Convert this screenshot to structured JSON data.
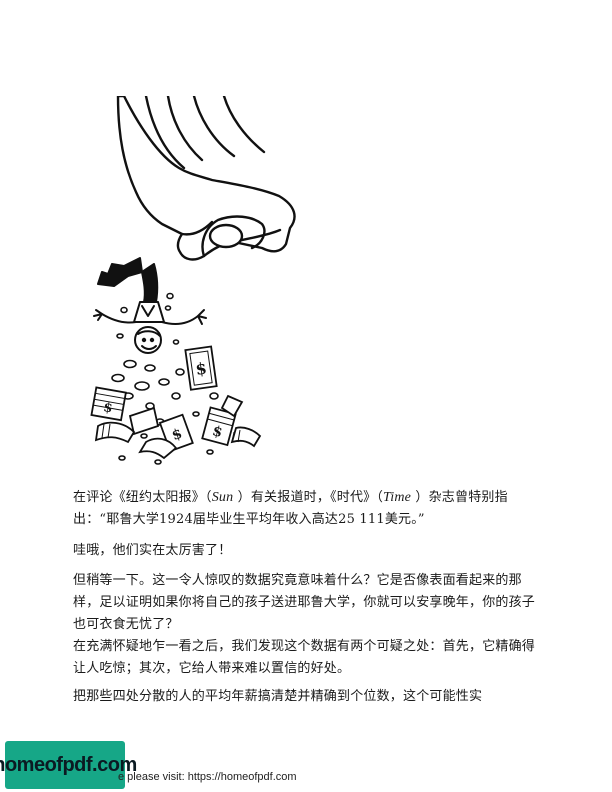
{
  "illustration": {
    "icon": "hand-dropping-man-money-icon",
    "bill_symbol": "$"
  },
  "paragraphs": {
    "p1_a": "在评论《纽约太阳报》（",
    "p1_sun": "Sun",
    "p1_b": " ）有关报道时，《时代》（",
    "p1_time": "Time",
    "p1_c": " ）杂志曾特别指出：“耶鲁大学1924届毕业生平均年收入高达25 111美元。”",
    "p2": "哇哦，他们实在太厉害了！",
    "p3": "但稍等一下。这一令人惊叹的数据究竟意味着什么？它是否像表面看起来的那样，足以证明如果你将自己的孩子送进耶鲁大学，你就可以安享晚年，你的孩子也可衣食无忧了？",
    "p4": "在充满怀疑地乍一看之后，我们发现这个数据有两个可疑之处：首先，它精确得让人吃惊；其次，它给人带来难以置信的好处。",
    "p5": "把那些四处分散的人的平均年薪搞清楚并精确到个位数，这个可能性实"
  },
  "footer": {
    "logo_text": "homeofpdf.com",
    "note": "e please visit: https://homeofpdf.com"
  }
}
